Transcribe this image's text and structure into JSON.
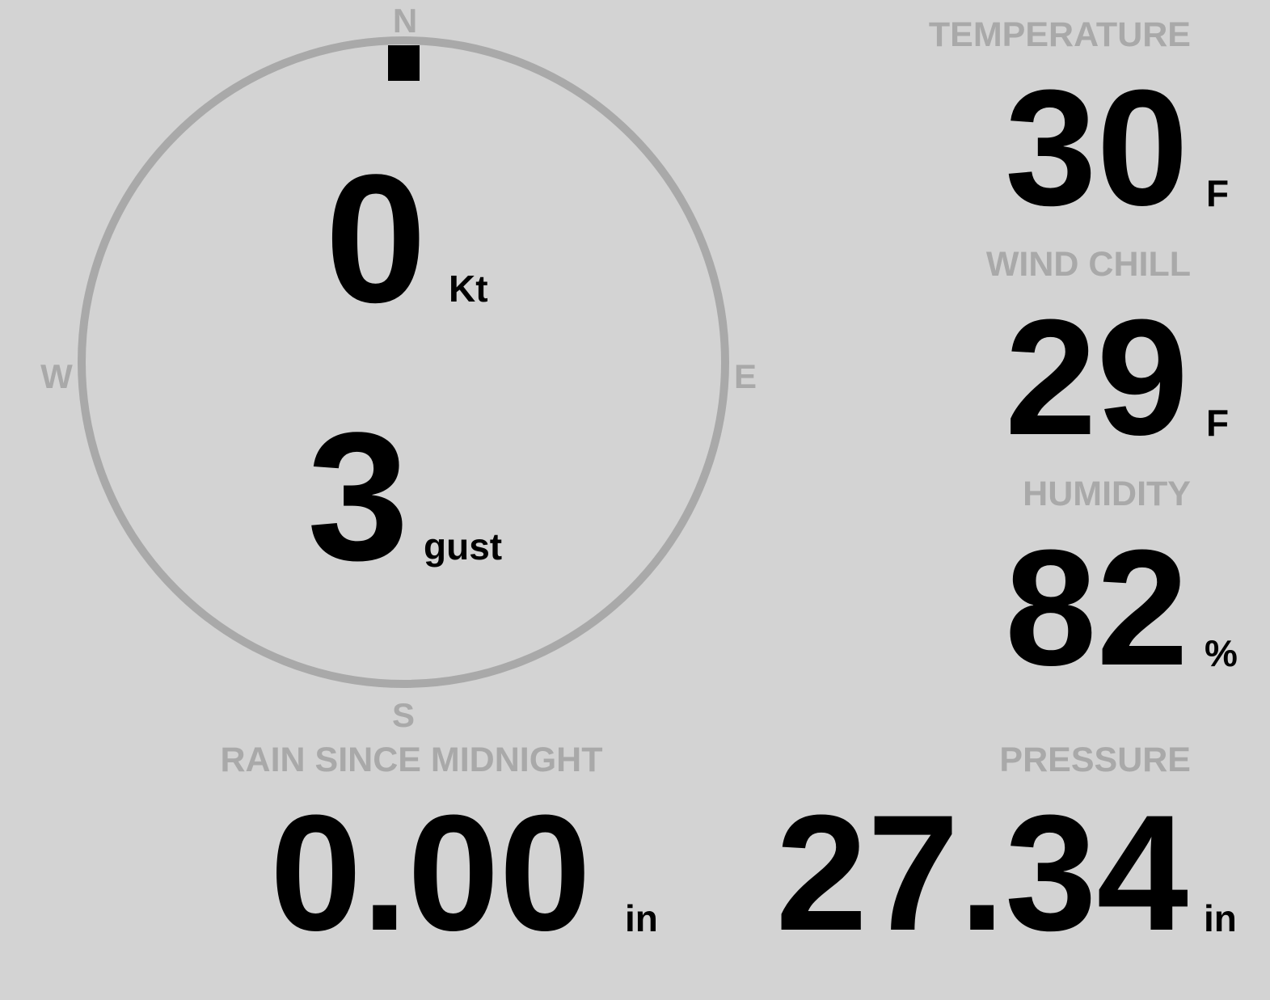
{
  "colors": {
    "background": "#d3d3d3",
    "label": "#a9a9a9",
    "value": "#000000",
    "compass_ring": "#a9a9a9"
  },
  "compass": {
    "north": "N",
    "south": "S",
    "east": "E",
    "west": "W",
    "wind_direction_deg": 0,
    "wind_speed": "0",
    "wind_speed_unit": "Kt",
    "gust": "3",
    "gust_unit": "gust"
  },
  "temperature": {
    "label": "TEMPERATURE",
    "value": "30",
    "unit": "F"
  },
  "wind_chill": {
    "label": "WIND CHILL",
    "value": "29",
    "unit": "F"
  },
  "humidity": {
    "label": "HUMIDITY",
    "value": "82",
    "unit": "%"
  },
  "rain": {
    "label": "RAIN SINCE MIDNIGHT",
    "value": "0.00",
    "unit": "in"
  },
  "pressure": {
    "label": "PRESSURE",
    "value": "27.34",
    "unit": "in"
  }
}
